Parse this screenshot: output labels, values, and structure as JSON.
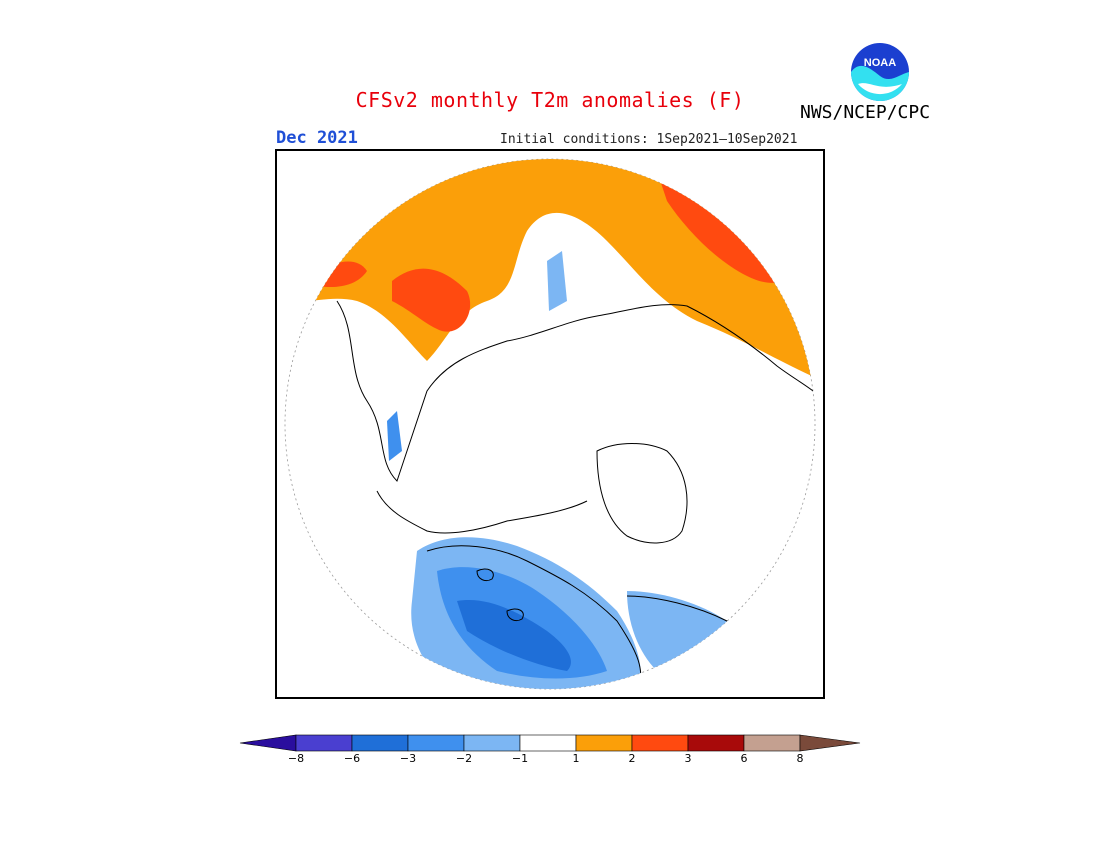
{
  "header": {
    "title": "CFSv2 monthly T2m anomalies (F)",
    "agency": "NWS/NCEP/CPC",
    "valid_month": "Dec 2021",
    "initial_conditions": "Initial conditions: 1Sep2021—10Sep2021"
  },
  "logo": {
    "icon": "noaa-logo-icon",
    "text": "NOAA"
  },
  "colorbar": {
    "labels": [
      "−8",
      "−6",
      "−3",
      "−2",
      "−1",
      "1",
      "2",
      "3",
      "6",
      "8"
    ],
    "colors": [
      "#2a0e9e",
      "#4a3fd0",
      "#1f6fd8",
      "#3f90ee",
      "#7cb6f3",
      "#ffffff",
      "#fb9f09",
      "#ff4a10",
      "#a80a0a",
      "#c4a090",
      "#7a4a3a"
    ]
  }
}
